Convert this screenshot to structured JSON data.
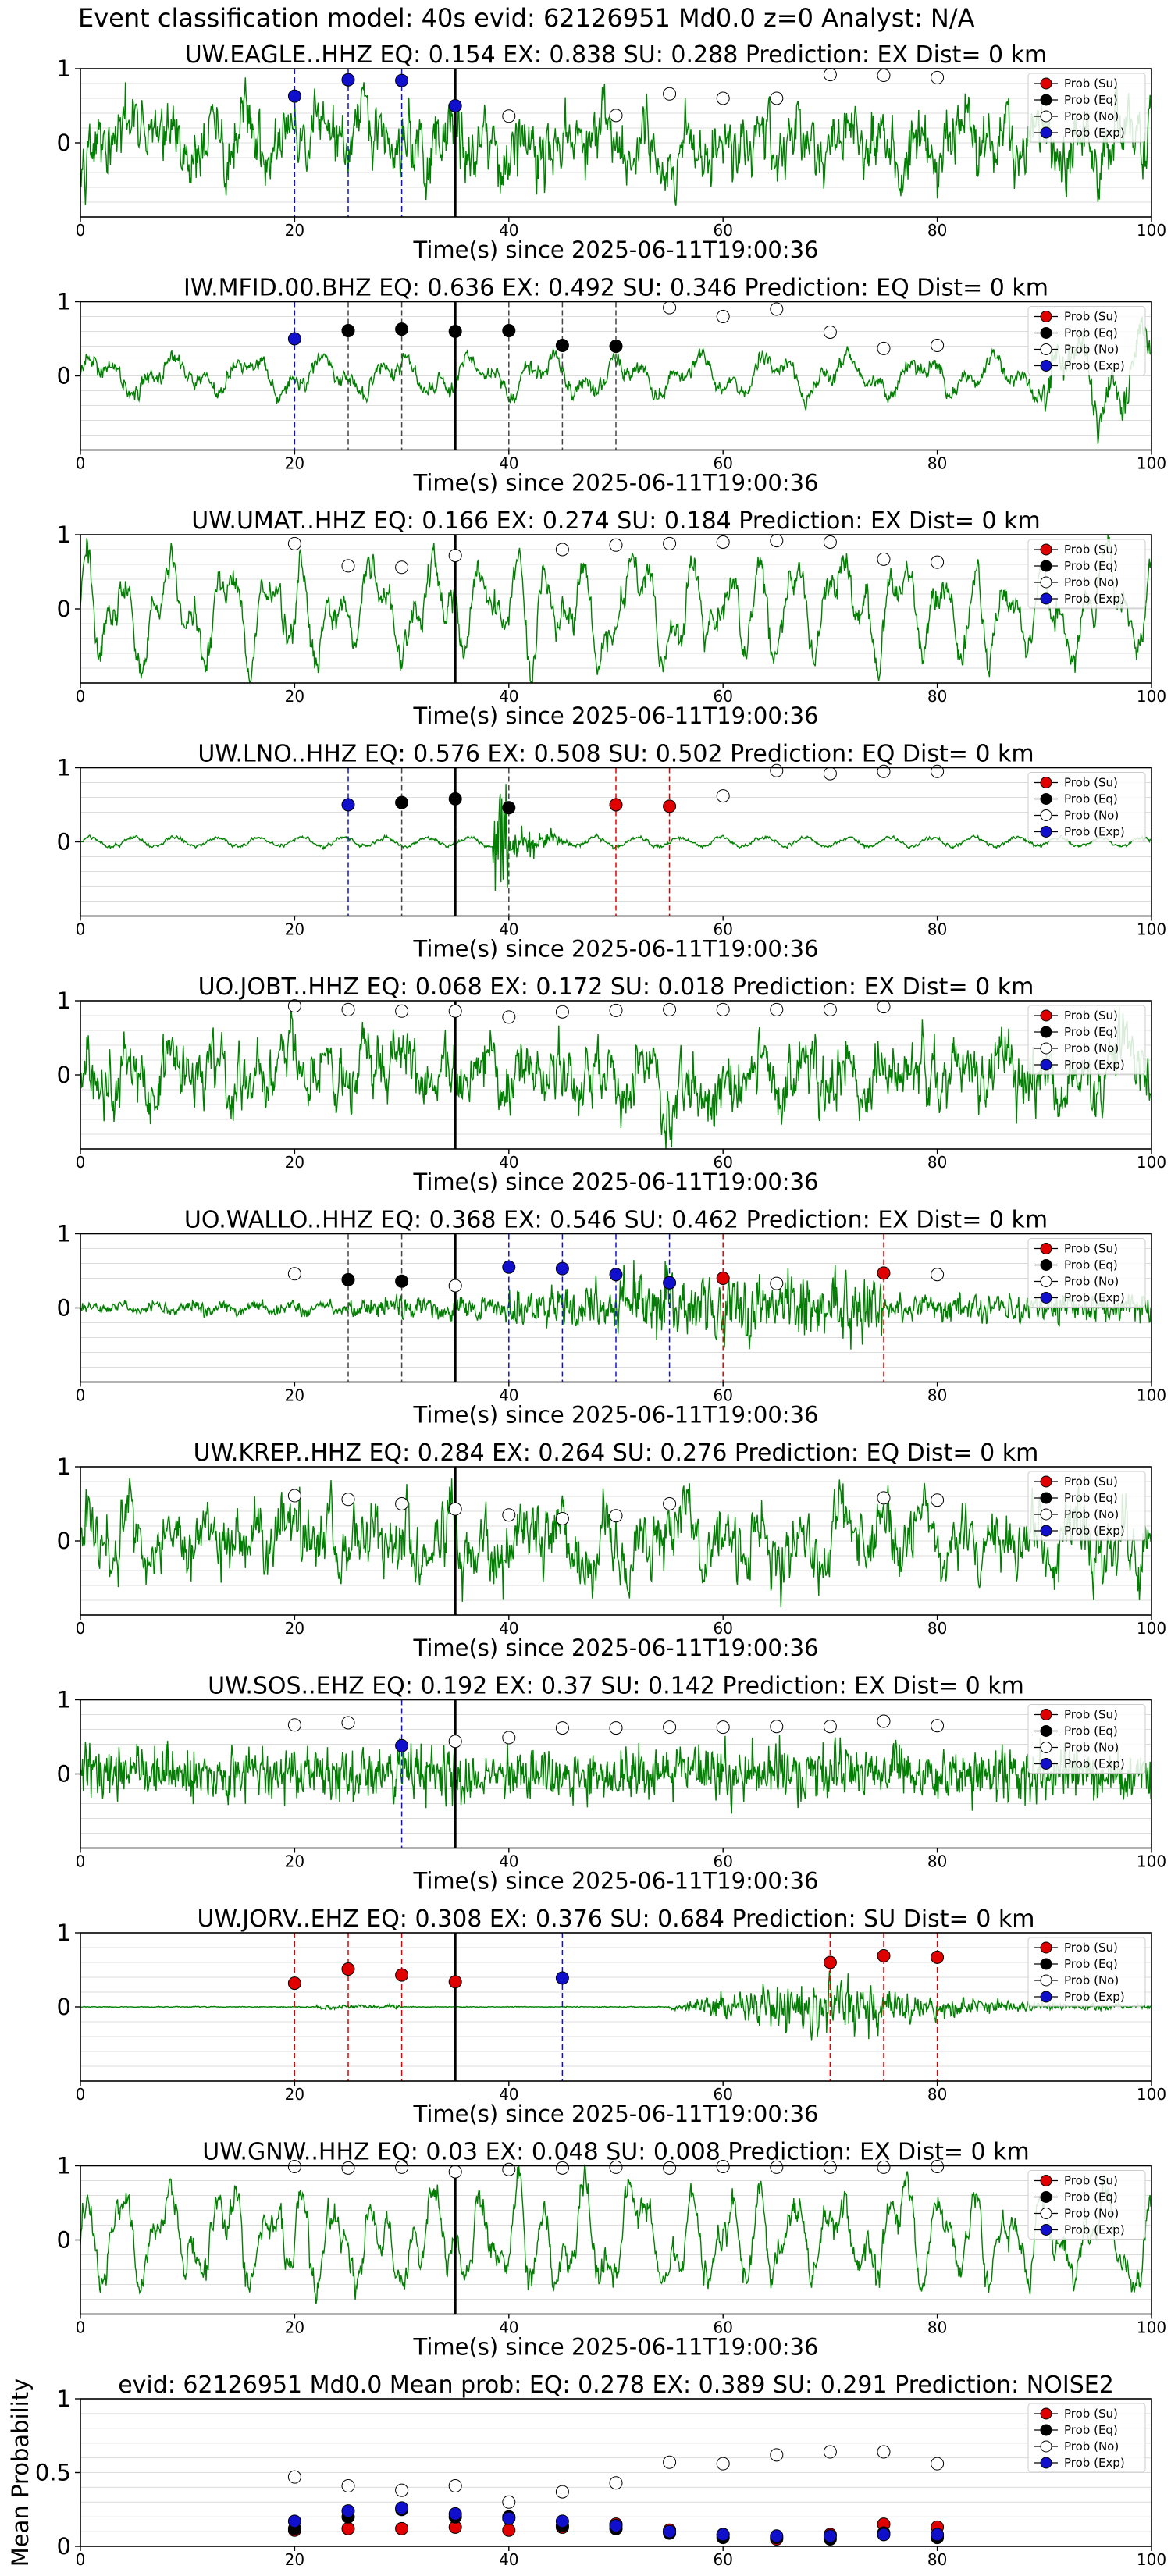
{
  "figure": {
    "suptitle": "Event classification model: 40s evid: 62126951 Md0.0 z=0 Analyst: N/A",
    "xlabel": "Time(s) since 2025-06-11T19:00:36",
    "legend": [
      "Prob (Su)",
      "Prob (Eq)",
      "Prob (No)",
      "Prob (Exp)"
    ],
    "colors": {
      "su": "#e00000",
      "eq": "#000000",
      "no": "#ffffff",
      "exp": "#1010cc",
      "trace": "#008000",
      "grid": "#dcdcdc"
    }
  },
  "chart_data": [
    {
      "type": "line",
      "title": "UW.EAGLE..HHZ   EQ: 0.154  EX: 0.838  SU: 0.288   Prediction: EX    Dist= 0 km",
      "station": "UW.EAGLE..HHZ",
      "scores": {
        "EQ": 0.154,
        "EX": 0.838,
        "SU": 0.288
      },
      "prediction": "EX",
      "distance_km": 0,
      "waveform": "noisy",
      "xlim": [
        0,
        100
      ],
      "ylim": [
        -1,
        1
      ],
      "yticks": [
        0,
        1
      ],
      "xticks": [
        0,
        20,
        40,
        60,
        80,
        100
      ],
      "xlabel": "Time(s) since 2025-06-11T19:00:36",
      "event_line_x": 35,
      "markers": [
        {
          "x": 20,
          "y": 0.63,
          "class": "exp"
        },
        {
          "x": 25,
          "y": 0.85,
          "class": "exp"
        },
        {
          "x": 30,
          "y": 0.84,
          "class": "exp"
        },
        {
          "x": 35,
          "y": 0.5,
          "class": "exp"
        },
        {
          "x": 40,
          "y": 0.36,
          "class": "no"
        },
        {
          "x": 50,
          "y": 0.37,
          "class": "no"
        },
        {
          "x": 55,
          "y": 0.66,
          "class": "no"
        },
        {
          "x": 60,
          "y": 0.6,
          "class": "no"
        },
        {
          "x": 65,
          "y": 0.6,
          "class": "no"
        },
        {
          "x": 70,
          "y": 0.92,
          "class": "no"
        },
        {
          "x": 75,
          "y": 0.91,
          "class": "no"
        },
        {
          "x": 80,
          "y": 0.88,
          "class": "no"
        }
      ]
    },
    {
      "type": "line",
      "title": "IW.MFID.00.BHZ   EQ: 0.636  EX: 0.492  SU: 0.346   Prediction: EQ    Dist= 0 km",
      "station": "IW.MFID.00.BHZ",
      "scores": {
        "EQ": 0.636,
        "EX": 0.492,
        "SU": 0.346
      },
      "prediction": "EQ",
      "distance_km": 0,
      "waveform": "lowfreq",
      "xlim": [
        0,
        100
      ],
      "ylim": [
        -1,
        1
      ],
      "yticks": [
        0,
        1
      ],
      "xticks": [
        0,
        20,
        40,
        60,
        80,
        100
      ],
      "xlabel": "Time(s) since 2025-06-11T19:00:36",
      "event_line_x": 35,
      "markers": [
        {
          "x": 20,
          "y": 0.5,
          "class": "exp"
        },
        {
          "x": 25,
          "y": 0.61,
          "class": "eq"
        },
        {
          "x": 30,
          "y": 0.63,
          "class": "eq"
        },
        {
          "x": 35,
          "y": 0.6,
          "class": "eq"
        },
        {
          "x": 40,
          "y": 0.61,
          "class": "eq"
        },
        {
          "x": 45,
          "y": 0.41,
          "class": "eq"
        },
        {
          "x": 50,
          "y": 0.4,
          "class": "eq"
        },
        {
          "x": 55,
          "y": 0.92,
          "class": "no"
        },
        {
          "x": 60,
          "y": 0.8,
          "class": "no"
        },
        {
          "x": 65,
          "y": 0.9,
          "class": "no"
        },
        {
          "x": 70,
          "y": 0.59,
          "class": "no"
        },
        {
          "x": 75,
          "y": 0.37,
          "class": "no"
        },
        {
          "x": 80,
          "y": 0.41,
          "class": "no"
        }
      ]
    },
    {
      "type": "line",
      "title": "UW.UMAT..HHZ   EQ: 0.166  EX: 0.274  SU: 0.184   Prediction: EX    Dist= 0 km",
      "station": "UW.UMAT..HHZ",
      "scores": {
        "EQ": 0.166,
        "EX": 0.274,
        "SU": 0.184
      },
      "prediction": "EX",
      "distance_km": 0,
      "waveform": "swell",
      "xlim": [
        0,
        100
      ],
      "ylim": [
        -1,
        1
      ],
      "yticks": [
        0,
        1
      ],
      "xticks": [
        0,
        20,
        40,
        60,
        80,
        100
      ],
      "xlabel": "Time(s) since 2025-06-11T19:00:36",
      "event_line_x": 35,
      "markers": [
        {
          "x": 20,
          "y": 0.88,
          "class": "no"
        },
        {
          "x": 25,
          "y": 0.58,
          "class": "no"
        },
        {
          "x": 30,
          "y": 0.56,
          "class": "no"
        },
        {
          "x": 35,
          "y": 0.72,
          "class": "no"
        },
        {
          "x": 45,
          "y": 0.8,
          "class": "no"
        },
        {
          "x": 50,
          "y": 0.86,
          "class": "no"
        },
        {
          "x": 55,
          "y": 0.88,
          "class": "no"
        },
        {
          "x": 60,
          "y": 0.9,
          "class": "no"
        },
        {
          "x": 65,
          "y": 0.92,
          "class": "no"
        },
        {
          "x": 70,
          "y": 0.9,
          "class": "no"
        },
        {
          "x": 75,
          "y": 0.67,
          "class": "no"
        },
        {
          "x": 80,
          "y": 0.63,
          "class": "no"
        }
      ]
    },
    {
      "type": "line",
      "title": "UW.LNO..HHZ   EQ: 0.576  EX: 0.508  SU: 0.502   Prediction: EQ    Dist= 0 km",
      "station": "UW.LNO..HHZ",
      "scores": {
        "EQ": 0.576,
        "EX": 0.508,
        "SU": 0.502
      },
      "prediction": "EQ",
      "distance_km": 0,
      "waveform": "quake",
      "xlim": [
        0,
        100
      ],
      "ylim": [
        -1,
        1
      ],
      "yticks": [
        0,
        1
      ],
      "xticks": [
        0,
        20,
        40,
        60,
        80,
        100
      ],
      "xlabel": "Time(s) since 2025-06-11T19:00:36",
      "event_line_x": 35,
      "markers": [
        {
          "x": 25,
          "y": 0.5,
          "class": "exp"
        },
        {
          "x": 30,
          "y": 0.53,
          "class": "eq"
        },
        {
          "x": 35,
          "y": 0.58,
          "class": "eq"
        },
        {
          "x": 40,
          "y": 0.46,
          "class": "eq"
        },
        {
          "x": 50,
          "y": 0.5,
          "class": "su"
        },
        {
          "x": 55,
          "y": 0.48,
          "class": "su"
        },
        {
          "x": 60,
          "y": 0.62,
          "class": "no"
        },
        {
          "x": 65,
          "y": 0.96,
          "class": "no"
        },
        {
          "x": 70,
          "y": 0.92,
          "class": "no"
        },
        {
          "x": 75,
          "y": 0.95,
          "class": "no"
        },
        {
          "x": 80,
          "y": 0.95,
          "class": "no"
        }
      ]
    },
    {
      "type": "line",
      "title": "UO.JOBT..HHZ   EQ: 0.068  EX: 0.172  SU: 0.018   Prediction: EX    Dist= 0 km",
      "station": "UO.JOBT..HHZ",
      "scores": {
        "EQ": 0.068,
        "EX": 0.172,
        "SU": 0.018
      },
      "prediction": "EX",
      "distance_km": 0,
      "waveform": "noisy",
      "xlim": [
        0,
        100
      ],
      "ylim": [
        -1,
        1
      ],
      "yticks": [
        0,
        1
      ],
      "xticks": [
        0,
        20,
        40,
        60,
        80,
        100
      ],
      "xlabel": "Time(s) since 2025-06-11T19:00:36",
      "event_line_x": 35,
      "markers": [
        {
          "x": 20,
          "y": 0.93,
          "class": "no"
        },
        {
          "x": 25,
          "y": 0.88,
          "class": "no"
        },
        {
          "x": 30,
          "y": 0.86,
          "class": "no"
        },
        {
          "x": 35,
          "y": 0.86,
          "class": "no"
        },
        {
          "x": 40,
          "y": 0.78,
          "class": "no"
        },
        {
          "x": 45,
          "y": 0.85,
          "class": "no"
        },
        {
          "x": 50,
          "y": 0.87,
          "class": "no"
        },
        {
          "x": 55,
          "y": 0.88,
          "class": "no"
        },
        {
          "x": 60,
          "y": 0.88,
          "class": "no"
        },
        {
          "x": 65,
          "y": 0.88,
          "class": "no"
        },
        {
          "x": 70,
          "y": 0.88,
          "class": "no"
        },
        {
          "x": 75,
          "y": 0.92,
          "class": "no"
        }
      ]
    },
    {
      "type": "line",
      "title": "UO.WALLO..HHZ   EQ: 0.368  EX: 0.546  SU: 0.462   Prediction: EX    Dist= 0 km",
      "station": "UO.WALLO..HHZ",
      "scores": {
        "EQ": 0.368,
        "EX": 0.546,
        "SU": 0.462
      },
      "prediction": "EX",
      "distance_km": 0,
      "waveform": "burst",
      "xlim": [
        0,
        100
      ],
      "ylim": [
        -1,
        1
      ],
      "yticks": [
        0,
        1
      ],
      "xticks": [
        0,
        20,
        40,
        60,
        80,
        100
      ],
      "xlabel": "Time(s) since 2025-06-11T19:00:36",
      "event_line_x": 35,
      "markers": [
        {
          "x": 20,
          "y": 0.46,
          "class": "no"
        },
        {
          "x": 25,
          "y": 0.38,
          "class": "eq"
        },
        {
          "x": 30,
          "y": 0.36,
          "class": "eq"
        },
        {
          "x": 35,
          "y": 0.3,
          "class": "no"
        },
        {
          "x": 40,
          "y": 0.55,
          "class": "exp"
        },
        {
          "x": 45,
          "y": 0.53,
          "class": "exp"
        },
        {
          "x": 50,
          "y": 0.45,
          "class": "exp"
        },
        {
          "x": 55,
          "y": 0.34,
          "class": "exp"
        },
        {
          "x": 60,
          "y": 0.4,
          "class": "su"
        },
        {
          "x": 65,
          "y": 0.33,
          "class": "no"
        },
        {
          "x": 75,
          "y": 0.47,
          "class": "su"
        },
        {
          "x": 80,
          "y": 0.45,
          "class": "no"
        }
      ]
    },
    {
      "type": "line",
      "title": "UW.KREP..HHZ   EQ: 0.284  EX: 0.264  SU: 0.276   Prediction: EQ    Dist= 0 km",
      "station": "UW.KREP..HHZ",
      "scores": {
        "EQ": 0.284,
        "EX": 0.264,
        "SU": 0.276
      },
      "prediction": "EQ",
      "distance_km": 0,
      "waveform": "noisy",
      "xlim": [
        0,
        100
      ],
      "ylim": [
        -1,
        1
      ],
      "yticks": [
        0,
        1
      ],
      "xticks": [
        0,
        20,
        40,
        60,
        80,
        100
      ],
      "xlabel": "Time(s) since 2025-06-11T19:00:36",
      "event_line_x": 35,
      "markers": [
        {
          "x": 20,
          "y": 0.61,
          "class": "no"
        },
        {
          "x": 25,
          "y": 0.56,
          "class": "no"
        },
        {
          "x": 30,
          "y": 0.5,
          "class": "no"
        },
        {
          "x": 35,
          "y": 0.43,
          "class": "no"
        },
        {
          "x": 40,
          "y": 0.35,
          "class": "no"
        },
        {
          "x": 45,
          "y": 0.3,
          "class": "no"
        },
        {
          "x": 50,
          "y": 0.34,
          "class": "no"
        },
        {
          "x": 55,
          "y": 0.5,
          "class": "no"
        },
        {
          "x": 75,
          "y": 0.58,
          "class": "no"
        },
        {
          "x": 80,
          "y": 0.55,
          "class": "no"
        }
      ]
    },
    {
      "type": "line",
      "title": "UW.SOS..EHZ   EQ: 0.192  EX: 0.37  SU: 0.142   Prediction: EX    Dist= 0 km",
      "station": "UW.SOS..EHZ",
      "scores": {
        "EQ": 0.192,
        "EX": 0.37,
        "SU": 0.142
      },
      "prediction": "EX",
      "distance_km": 0,
      "waveform": "dense",
      "xlim": [
        0,
        100
      ],
      "ylim": [
        -1,
        1
      ],
      "yticks": [
        0,
        1
      ],
      "xticks": [
        0,
        20,
        40,
        60,
        80,
        100
      ],
      "xlabel": "Time(s) since 2025-06-11T19:00:36",
      "event_line_x": 35,
      "markers": [
        {
          "x": 20,
          "y": 0.66,
          "class": "no"
        },
        {
          "x": 25,
          "y": 0.69,
          "class": "no"
        },
        {
          "x": 30,
          "y": 0.38,
          "class": "exp"
        },
        {
          "x": 35,
          "y": 0.44,
          "class": "no"
        },
        {
          "x": 40,
          "y": 0.49,
          "class": "no"
        },
        {
          "x": 45,
          "y": 0.62,
          "class": "no"
        },
        {
          "x": 50,
          "y": 0.62,
          "class": "no"
        },
        {
          "x": 55,
          "y": 0.63,
          "class": "no"
        },
        {
          "x": 60,
          "y": 0.63,
          "class": "no"
        },
        {
          "x": 65,
          "y": 0.64,
          "class": "no"
        },
        {
          "x": 70,
          "y": 0.64,
          "class": "no"
        },
        {
          "x": 75,
          "y": 0.71,
          "class": "no"
        },
        {
          "x": 80,
          "y": 0.65,
          "class": "no"
        }
      ]
    },
    {
      "type": "line",
      "title": "UW.JORV..EHZ   EQ: 0.308  EX: 0.376  SU: 0.684   Prediction: SU    Dist= 0 km",
      "station": "UW.JORV..EHZ",
      "scores": {
        "EQ": 0.308,
        "EX": 0.376,
        "SU": 0.684
      },
      "prediction": "SU",
      "distance_km": 0,
      "waveform": "slide",
      "xlim": [
        0,
        100
      ],
      "ylim": [
        -1,
        1
      ],
      "yticks": [
        0,
        1
      ],
      "xticks": [
        0,
        20,
        40,
        60,
        80,
        100
      ],
      "xlabel": "Time(s) since 2025-06-11T19:00:36",
      "event_line_x": 35,
      "markers": [
        {
          "x": 20,
          "y": 0.32,
          "class": "su"
        },
        {
          "x": 25,
          "y": 0.51,
          "class": "su"
        },
        {
          "x": 30,
          "y": 0.43,
          "class": "su"
        },
        {
          "x": 35,
          "y": 0.34,
          "class": "su"
        },
        {
          "x": 45,
          "y": 0.39,
          "class": "exp"
        },
        {
          "x": 70,
          "y": 0.6,
          "class": "su"
        },
        {
          "x": 75,
          "y": 0.69,
          "class": "su"
        },
        {
          "x": 80,
          "y": 0.67,
          "class": "su"
        }
      ]
    },
    {
      "type": "line",
      "title": "UW.GNW..HHZ   EQ: 0.03  EX: 0.048  SU: 0.008   Prediction: EX    Dist= 0 km",
      "station": "UW.GNW..HHZ",
      "scores": {
        "EQ": 0.03,
        "EX": 0.048,
        "SU": 0.008
      },
      "prediction": "EX",
      "distance_km": 0,
      "waveform": "swell",
      "xlim": [
        0,
        100
      ],
      "ylim": [
        -1,
        1
      ],
      "yticks": [
        0,
        1
      ],
      "xticks": [
        0,
        20,
        40,
        60,
        80,
        100
      ],
      "xlabel": "Time(s) since 2025-06-11T19:00:36",
      "event_line_x": 35,
      "markers": [
        {
          "x": 20,
          "y": 0.99,
          "class": "no"
        },
        {
          "x": 25,
          "y": 0.97,
          "class": "no"
        },
        {
          "x": 30,
          "y": 0.98,
          "class": "no"
        },
        {
          "x": 35,
          "y": 0.92,
          "class": "no"
        },
        {
          "x": 40,
          "y": 0.95,
          "class": "no"
        },
        {
          "x": 45,
          "y": 0.97,
          "class": "no"
        },
        {
          "x": 50,
          "y": 0.98,
          "class": "no"
        },
        {
          "x": 55,
          "y": 0.97,
          "class": "no"
        },
        {
          "x": 60,
          "y": 0.99,
          "class": "no"
        },
        {
          "x": 65,
          "y": 0.98,
          "class": "no"
        },
        {
          "x": 70,
          "y": 0.98,
          "class": "no"
        },
        {
          "x": 75,
          "y": 0.98,
          "class": "no"
        },
        {
          "x": 80,
          "y": 0.99,
          "class": "no"
        }
      ]
    },
    {
      "type": "scatter",
      "title": "evid: 62126951  Md0.0   Mean prob:   EQ: 0.278  EX: 0.389  SU: 0.291   Prediction: NOISE2",
      "ylabel": "Mean Probability",
      "xlabel": "",
      "xlim": [
        0,
        100
      ],
      "ylim": [
        0,
        1
      ],
      "yticks": [
        0,
        0.5,
        1
      ],
      "xticks": [
        0,
        20,
        40,
        60,
        80,
        100
      ],
      "x": [
        20,
        25,
        30,
        35,
        40,
        45,
        50,
        55,
        60,
        65,
        70,
        75,
        80
      ],
      "series": [
        {
          "name": "Prob (Su)",
          "key": "su",
          "values": [
            0.11,
            0.12,
            0.12,
            0.13,
            0.11,
            0.13,
            0.15,
            0.11,
            0.08,
            0.05,
            0.08,
            0.15,
            0.13
          ]
        },
        {
          "name": "Prob (Eq)",
          "key": "eq",
          "values": [
            0.12,
            0.2,
            0.25,
            0.2,
            0.2,
            0.14,
            0.12,
            0.09,
            0.06,
            0.06,
            0.05,
            0.09,
            0.06
          ]
        },
        {
          "name": "Prob (No)",
          "key": "no",
          "values": [
            0.47,
            0.41,
            0.38,
            0.41,
            0.3,
            0.37,
            0.43,
            0.57,
            0.56,
            0.62,
            0.64,
            0.64,
            0.56
          ]
        },
        {
          "name": "Prob (Exp)",
          "key": "exp",
          "values": [
            0.17,
            0.24,
            0.26,
            0.22,
            0.19,
            0.17,
            0.14,
            0.1,
            0.08,
            0.07,
            0.07,
            0.08,
            0.08
          ]
        }
      ]
    }
  ]
}
